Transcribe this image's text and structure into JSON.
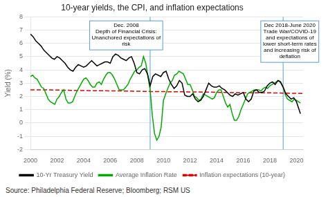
{
  "chart_data": {
    "type": "line",
    "title": "10-year yields, the CPI, and inflation expectations",
    "y_label": "Yield (%)",
    "source": "Source: Philadelphia Federal Reserve; Bloomberg; RSM US",
    "xlim": [
      2000,
      2020.5
    ],
    "xticks": [
      2000,
      2002,
      2004,
      2006,
      2008,
      2010,
      2012,
      2014,
      2016,
      2018,
      2020
    ],
    "ylim": [
      -2,
      8
    ],
    "yticks": [
      -2,
      -1,
      0,
      1,
      2,
      3,
      4,
      5,
      6,
      7,
      8
    ],
    "grid": true,
    "legend": "bottom",
    "vlines": [
      2009.0,
      2019.0
    ],
    "annotations": [
      {
        "text": "Dec. 2008\nDepth of Financial Crisis:\nUnanchored expectations of\nrisk",
        "x": 2007.2,
        "y": 7.7
      },
      {
        "text": "Dec 2018-June 2020\nTrade War/COVID-19\nand expectations of\nlower short-term rates\nand increasing risk of\ndeflation",
        "x": 2019.5,
        "y": 7.7
      }
    ],
    "series": [
      {
        "name": "10-Yr Treasury Yield",
        "color": "#000000",
        "line_style": "solid",
        "x": [
          2000.0,
          2000.1,
          2000.2,
          2000.4,
          2000.6,
          2000.8,
          2001.0,
          2001.2,
          2001.4,
          2001.6,
          2001.8,
          2002.0,
          2002.2,
          2002.4,
          2002.6,
          2002.8,
          2003.0,
          2003.2,
          2003.4,
          2003.6,
          2003.8,
          2004.0,
          2004.2,
          2004.4,
          2004.6,
          2004.8,
          2005.0,
          2005.2,
          2005.4,
          2005.6,
          2005.8,
          2006.0,
          2006.2,
          2006.4,
          2006.6,
          2006.8,
          2007.0,
          2007.2,
          2007.4,
          2007.6,
          2007.8,
          2008.0,
          2008.2,
          2008.4,
          2008.6,
          2008.8,
          2009.0,
          2009.2,
          2009.4,
          2009.6,
          2009.8,
          2010.0,
          2010.2,
          2010.4,
          2010.6,
          2010.8,
          2011.0,
          2011.2,
          2011.4,
          2011.6,
          2011.8,
          2012.0,
          2012.2,
          2012.4,
          2012.6,
          2012.8,
          2013.0,
          2013.2,
          2013.4,
          2013.6,
          2013.8,
          2014.0,
          2014.2,
          2014.4,
          2014.6,
          2014.8,
          2015.0,
          2015.2,
          2015.4,
          2015.6,
          2015.8,
          2016.0,
          2016.2,
          2016.4,
          2016.6,
          2016.8,
          2017.0,
          2017.2,
          2017.4,
          2017.6,
          2017.8,
          2018.0,
          2018.2,
          2018.4,
          2018.6,
          2018.8,
          2019.0,
          2019.2,
          2019.4,
          2019.6,
          2019.8,
          2020.0,
          2020.3
        ],
        "values": [
          6.7,
          6.6,
          6.5,
          6.2,
          6.0,
          5.8,
          5.5,
          5.3,
          5.1,
          4.9,
          4.8,
          5.0,
          4.9,
          4.7,
          4.5,
          4.2,
          4.0,
          3.9,
          4.2,
          4.4,
          4.3,
          4.2,
          4.3,
          4.5,
          4.7,
          4.5,
          4.3,
          4.4,
          4.5,
          4.6,
          4.6,
          4.5,
          5.0,
          5.2,
          5.1,
          4.9,
          4.8,
          4.7,
          4.9,
          5.0,
          4.5,
          3.8,
          3.7,
          4.0,
          4.1,
          3.7,
          2.8,
          3.5,
          3.7,
          3.6,
          3.5,
          3.8,
          3.9,
          3.3,
          2.9,
          2.6,
          2.8,
          3.2,
          3.0,
          2.1,
          2.0,
          2.0,
          2.2,
          1.8,
          1.6,
          1.7,
          2.0,
          2.5,
          3.0,
          2.8,
          2.7,
          2.7,
          2.8,
          2.6,
          2.5,
          2.3,
          2.1,
          2.0,
          2.2,
          2.1,
          2.2,
          2.3,
          1.8,
          1.6,
          1.8,
          2.4,
          2.5,
          2.3,
          2.3,
          2.4,
          2.8,
          3.0,
          3.1,
          2.9,
          3.2,
          3.1,
          2.7,
          2.2,
          2.0,
          1.8,
          1.9,
          1.6,
          0.7
        ]
      },
      {
        "name": "Average Inflation Rate",
        "color": "#00aa00",
        "line_style": "solid",
        "x": [
          2000.0,
          2000.17,
          2000.33,
          2000.5,
          2000.67,
          2000.83,
          2001.0,
          2001.17,
          2001.33,
          2001.5,
          2001.67,
          2001.83,
          2002.0,
          2002.17,
          2002.33,
          2002.5,
          2002.67,
          2002.83,
          2003.0,
          2003.17,
          2003.33,
          2003.5,
          2003.67,
          2003.83,
          2004.0,
          2004.17,
          2004.33,
          2004.5,
          2004.67,
          2004.83,
          2005.0,
          2005.17,
          2005.33,
          2005.5,
          2005.67,
          2005.83,
          2006.0,
          2006.17,
          2006.33,
          2006.5,
          2006.67,
          2006.83,
          2007.0,
          2007.17,
          2007.33,
          2007.5,
          2007.67,
          2007.83,
          2008.0,
          2008.17,
          2008.33,
          2008.5,
          2008.67,
          2008.83,
          2009.0,
          2009.17,
          2009.33,
          2009.5,
          2009.67,
          2009.83,
          2010.0,
          2010.17,
          2010.33,
          2010.5,
          2010.67,
          2010.83,
          2011.0,
          2011.17,
          2011.33,
          2011.5,
          2011.67,
          2011.83,
          2012.0,
          2012.17,
          2012.33,
          2012.5,
          2012.67,
          2012.83,
          2013.0,
          2013.17,
          2013.33,
          2013.5,
          2013.67,
          2013.83,
          2014.0,
          2014.17,
          2014.33,
          2014.5,
          2014.67,
          2014.83,
          2015.0,
          2015.17,
          2015.33,
          2015.5,
          2015.67,
          2015.83,
          2016.0,
          2016.17,
          2016.33,
          2016.5,
          2016.67,
          2016.83,
          2017.0,
          2017.17,
          2017.33,
          2017.5,
          2017.67,
          2017.83,
          2018.0,
          2018.17,
          2018.33,
          2018.5,
          2018.67,
          2018.83,
          2019.0,
          2019.17,
          2019.33,
          2019.5,
          2019.67,
          2019.83,
          2020.0,
          2020.3
        ],
        "values": [
          3.5,
          3.6,
          3.4,
          3.3,
          3.0,
          2.7,
          2.6,
          2.2,
          1.8,
          1.6,
          1.5,
          1.4,
          1.8,
          2.0,
          2.3,
          2.5,
          1.8,
          1.5,
          1.5,
          1.6,
          2.0,
          2.4,
          2.7,
          3.0,
          3.3,
          3.4,
          3.2,
          2.9,
          2.7,
          2.7,
          3.0,
          3.1,
          2.9,
          3.3,
          3.6,
          3.8,
          3.8,
          3.6,
          3.3,
          2.9,
          2.5,
          2.5,
          2.5,
          2.7,
          2.9,
          3.3,
          3.6,
          3.9,
          4.0,
          4.2,
          4.3,
          5.0,
          4.5,
          3.5,
          2.5,
          0.5,
          -0.8,
          -1.3,
          -1.0,
          -0.3,
          1.7,
          2.2,
          2.6,
          3.0,
          3.2,
          3.6,
          3.7,
          3.9,
          3.8,
          3.7,
          3.3,
          2.9,
          2.9,
          2.5,
          2.0,
          1.9,
          1.7,
          1.8,
          2.2,
          2.1,
          2.0,
          1.9,
          1.8,
          1.9,
          2.3,
          2.5,
          2.5,
          2.0,
          1.5,
          1.2,
          1.4,
          0.7,
          0.2,
          0.2,
          0.5,
          1.0,
          1.4,
          1.8,
          2.2,
          2.3,
          2.4,
          2.5,
          2.5,
          2.5,
          2.4,
          2.6,
          2.7,
          2.6,
          2.8,
          2.9,
          3.0,
          3.1,
          3.2,
          3.0,
          2.7,
          2.1,
          1.8,
          1.7,
          1.6,
          1.8,
          1.7,
          1.5
        ]
      },
      {
        "name": "Inflation expectations (10-year)",
        "color": "#dd0000",
        "line_style": "dashed",
        "x": [
          2000,
          2001,
          2002,
          2003,
          2004,
          2005,
          2006,
          2007,
          2008,
          2009,
          2010,
          2011,
          2012,
          2013,
          2014,
          2015,
          2016,
          2017,
          2018,
          2019,
          2020,
          2020.5
        ],
        "values": [
          2.5,
          2.5,
          2.48,
          2.46,
          2.44,
          2.43,
          2.42,
          2.41,
          2.39,
          2.37,
          2.36,
          2.35,
          2.34,
          2.33,
          2.31,
          2.29,
          2.27,
          2.27,
          2.27,
          2.25,
          2.23,
          2.22
        ]
      }
    ]
  }
}
